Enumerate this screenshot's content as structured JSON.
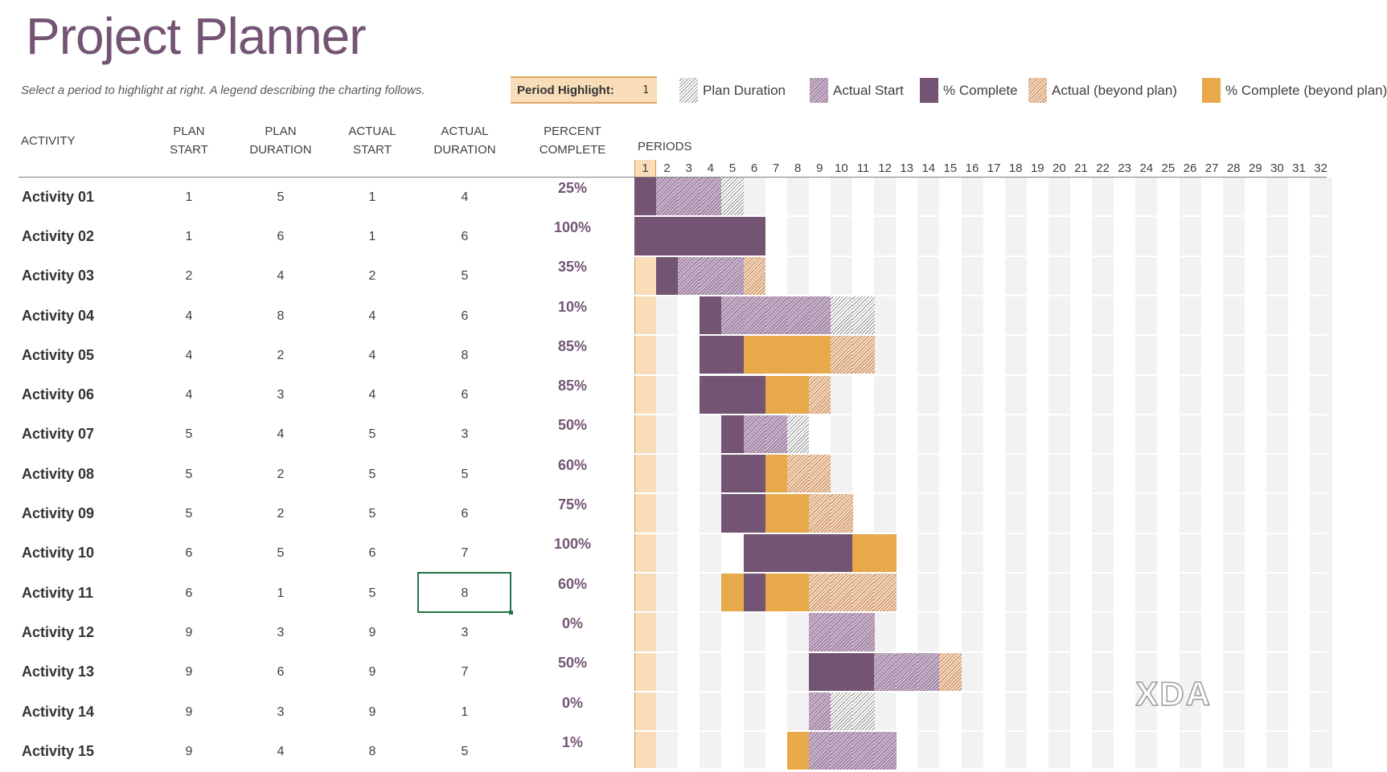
{
  "title": "Project Planner",
  "subtitle": "Select a period to highlight at right.  A legend describing the charting follows.",
  "period_highlight": {
    "label": "Period Highlight:",
    "value": "1"
  },
  "legend": [
    {
      "label": "Plan Duration",
      "style": "plan-hatch"
    },
    {
      "label": "Actual Start",
      "style": "actual-hatch"
    },
    {
      "label": "% Complete",
      "style": "complete-solid"
    },
    {
      "label": "Actual (beyond plan)",
      "style": "beyond-hatch"
    },
    {
      "label": "% Complete (beyond plan)",
      "style": "beyond-solid"
    }
  ],
  "columns": {
    "activity": "ACTIVITY",
    "plan_start": [
      "PLAN",
      "START"
    ],
    "plan_duration": [
      "PLAN",
      "DURATION"
    ],
    "actual_start": [
      "ACTUAL",
      "START"
    ],
    "actual_duration": [
      "ACTUAL",
      "DURATION"
    ],
    "percent_complete": [
      "PERCENT",
      "COMPLETE"
    ],
    "periods": "PERIODS"
  },
  "period_numbers": [
    1,
    2,
    3,
    4,
    5,
    6,
    7,
    8,
    9,
    10,
    11,
    12,
    13,
    14,
    15,
    16,
    17,
    18,
    19,
    20,
    21,
    22,
    23,
    24,
    25,
    26,
    27,
    28,
    29,
    30,
    31,
    32
  ],
  "colors": {
    "purple": "#735473",
    "orange": "#E8A94A",
    "highlight": "#F8DDB8"
  },
  "activities": [
    {
      "name": "Activity 01",
      "plan_start": 1,
      "plan_duration": 5,
      "actual_start": 1,
      "actual_duration": 4,
      "percent": "25%"
    },
    {
      "name": "Activity 02",
      "plan_start": 1,
      "plan_duration": 6,
      "actual_start": 1,
      "actual_duration": 6,
      "percent": "100%"
    },
    {
      "name": "Activity 03",
      "plan_start": 2,
      "plan_duration": 4,
      "actual_start": 2,
      "actual_duration": 5,
      "percent": "35%"
    },
    {
      "name": "Activity 04",
      "plan_start": 4,
      "plan_duration": 8,
      "actual_start": 4,
      "actual_duration": 6,
      "percent": "10%"
    },
    {
      "name": "Activity 05",
      "plan_start": 4,
      "plan_duration": 2,
      "actual_start": 4,
      "actual_duration": 8,
      "percent": "85%"
    },
    {
      "name": "Activity 06",
      "plan_start": 4,
      "plan_duration": 3,
      "actual_start": 4,
      "actual_duration": 6,
      "percent": "85%"
    },
    {
      "name": "Activity 07",
      "plan_start": 5,
      "plan_duration": 4,
      "actual_start": 5,
      "actual_duration": 3,
      "percent": "50%"
    },
    {
      "name": "Activity 08",
      "plan_start": 5,
      "plan_duration": 2,
      "actual_start": 5,
      "actual_duration": 5,
      "percent": "60%"
    },
    {
      "name": "Activity 09",
      "plan_start": 5,
      "plan_duration": 2,
      "actual_start": 5,
      "actual_duration": 6,
      "percent": "75%"
    },
    {
      "name": "Activity 10",
      "plan_start": 6,
      "plan_duration": 5,
      "actual_start": 6,
      "actual_duration": 7,
      "percent": "100%"
    },
    {
      "name": "Activity 11",
      "plan_start": 6,
      "plan_duration": 1,
      "actual_start": 5,
      "actual_duration": 8,
      "percent": "60%"
    },
    {
      "name": "Activity 12",
      "plan_start": 9,
      "plan_duration": 3,
      "actual_start": 9,
      "actual_duration": 3,
      "percent": "0%"
    },
    {
      "name": "Activity 13",
      "plan_start": 9,
      "plan_duration": 6,
      "actual_start": 9,
      "actual_duration": 7,
      "percent": "50%"
    },
    {
      "name": "Activity 14",
      "plan_start": 9,
      "plan_duration": 3,
      "actual_start": 9,
      "actual_duration": 1,
      "percent": "0%"
    },
    {
      "name": "Activity 15",
      "plan_start": 9,
      "plan_duration": 4,
      "actual_start": 8,
      "actual_duration": 5,
      "percent": "1%"
    }
  ],
  "watermark": "XDA"
}
